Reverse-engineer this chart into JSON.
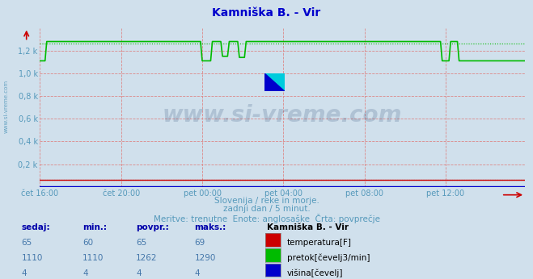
{
  "title": "Kamniška B. - Vir",
  "title_color": "#0000cc",
  "bg_color": "#d0e0ec",
  "plot_bg_color": "#d0e0ec",
  "grid_color": "#dd8888",
  "axis_label_color": "#5599bb",
  "subtitle_lines": [
    "Slovenija / reke in morje.",
    "zadnji dan / 5 minut.",
    "Meritve: trenutne  Enote: anglosaške  Črta: povprečje"
  ],
  "xticklabels": [
    "čet 16:00",
    "čet 20:00",
    "pet 00:00",
    "pet 04:00",
    "pet 08:00",
    "pet 12:00"
  ],
  "ytick_labels": [
    "0,2 k",
    "0,4 k",
    "0,6 k",
    "0,8 k",
    "1,0 k",
    "1,2 k"
  ],
  "ytick_values": [
    200,
    400,
    600,
    800,
    1000,
    1200
  ],
  "ylim": [
    0,
    1400
  ],
  "temp_avg": 65,
  "flow_avg": 1262,
  "watermark": "www.si-vreme.com",
  "watermark_color": "#1a3a6a",
  "watermark_alpha": 0.18,
  "legend_title": "Kamniška B. - Vir",
  "legend_items": [
    {
      "label": "temperatura[F]",
      "color": "#cc0000"
    },
    {
      "label": "pretok[čevelj3/min]",
      "color": "#00bb00"
    },
    {
      "label": "višina[čevelj]",
      "color": "#0000cc"
    }
  ],
  "table_headers": [
    "sedaj:",
    "min.:",
    "povpr.:",
    "maks.:"
  ],
  "table_data": [
    [
      65,
      60,
      65,
      69
    ],
    [
      1110,
      1110,
      1262,
      1290
    ],
    [
      4,
      4,
      4,
      4
    ]
  ],
  "sidebar_text": "www.si-vreme.com",
  "sidebar_color": "#5599bb"
}
